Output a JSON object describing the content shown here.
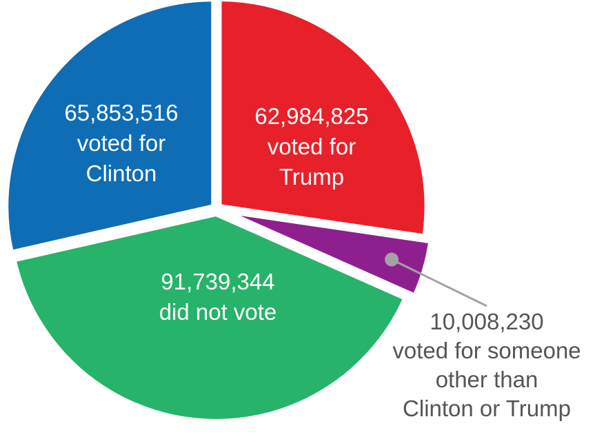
{
  "chart_data": {
    "type": "pie",
    "slices": [
      {
        "label_lines": [
          "62,984,825",
          "voted for",
          "Trump"
        ],
        "value": 62984825,
        "color": "#e8202a"
      },
      {
        "label_lines": [
          "10,008,230",
          "voted for someone",
          "other than",
          "Clinton or Trump"
        ],
        "value": 10008230,
        "color": "#8e1f8f"
      },
      {
        "label_lines": [
          "91,739,344",
          "did not vote"
        ],
        "value": 91739344,
        "color": "#27b36a"
      },
      {
        "label_lines": [
          "65,853,516",
          "voted for",
          "Clinton"
        ],
        "value": 65853516,
        "color": "#0f6db5"
      }
    ],
    "start_angle_deg": 0,
    "direction": "clockwise",
    "label_placement": [
      "inside",
      "outside-with-leader",
      "inside",
      "inside"
    ],
    "connector_color": "#a3a3a3",
    "outside_label_color": "#555555",
    "inside_label_color": "#ffffff"
  }
}
